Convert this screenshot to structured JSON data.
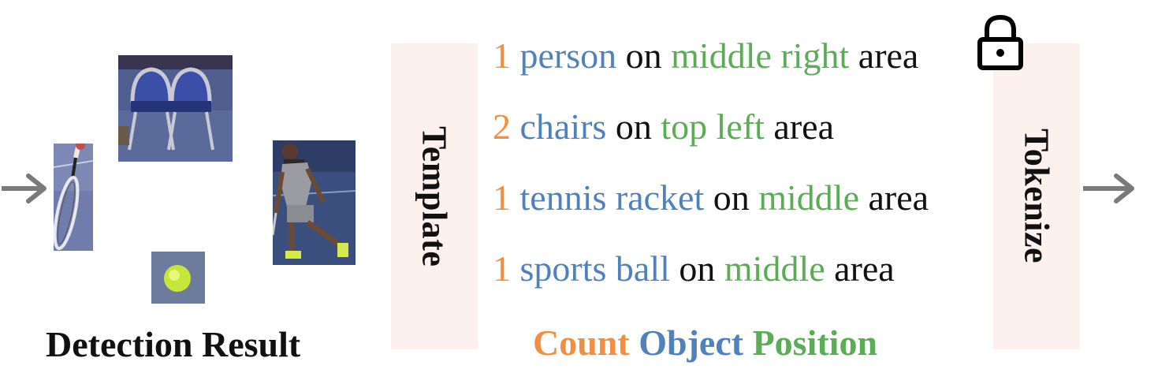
{
  "colors": {
    "count": "#f28e3f",
    "object": "#4f82bd",
    "position": "#5aad55",
    "text": "#111111",
    "panel": "#fcf1ec",
    "arrow": "#7a7a7a"
  },
  "detection": {
    "caption": "Detection Result",
    "crops": [
      "tennis-racket-crop",
      "chairs-crop",
      "sports-ball-crop",
      "person-crop"
    ]
  },
  "template_label": "Template",
  "tokenize_label": "Tokenize",
  "lock_icon": "lock-icon",
  "lines": [
    {
      "count": "1",
      "object": "person",
      "on": "on",
      "position": "middle right",
      "area": "area"
    },
    {
      "count": "2",
      "object": "chairs",
      "on": "on",
      "position": "top left",
      "area": "area"
    },
    {
      "count": "1",
      "object": "tennis racket",
      "on": "on",
      "position": "middle",
      "area": "area"
    },
    {
      "count": "1",
      "object": "sports ball",
      "on": "on",
      "position": "middle",
      "area": "area"
    }
  ],
  "legend": {
    "count": "Count",
    "object": "Object",
    "position": "Position"
  }
}
